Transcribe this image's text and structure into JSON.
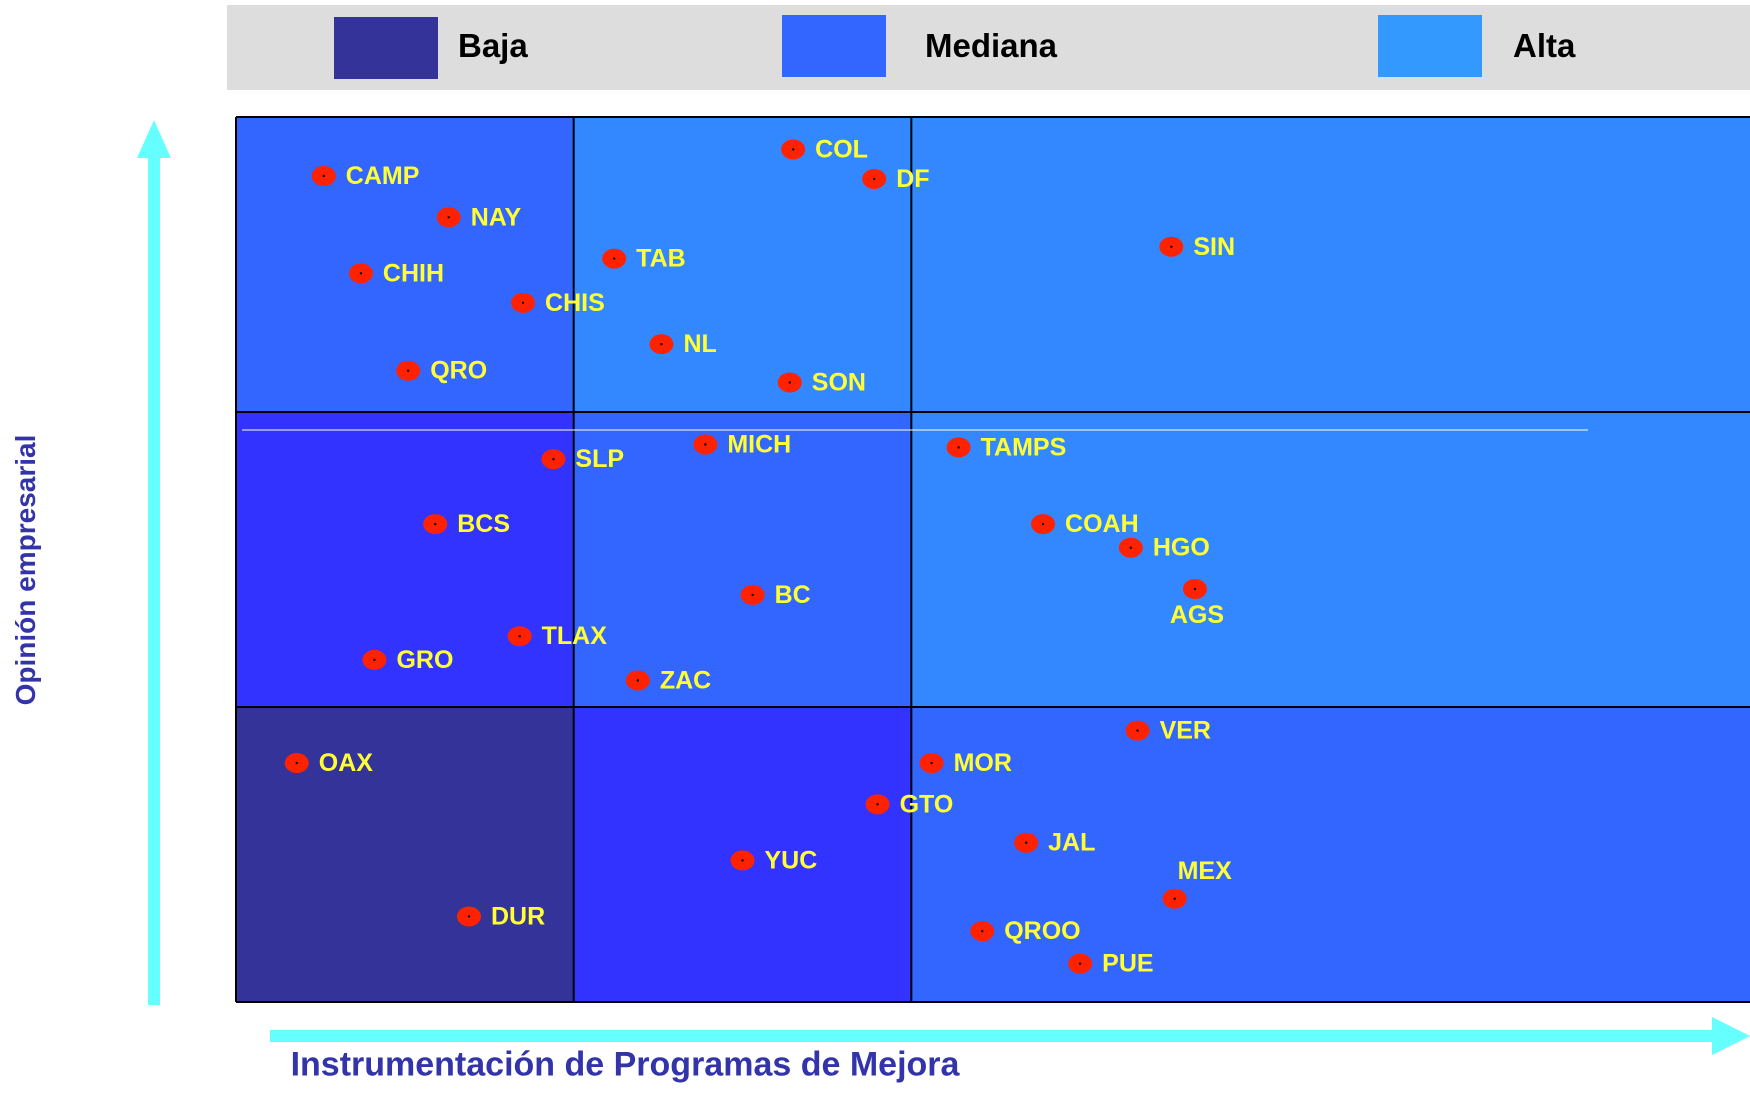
{
  "legend": [
    {
      "label": "Baja",
      "color": "#333399"
    },
    {
      "label": "Mediana",
      "color": "#3366ff"
    },
    {
      "label": "Alta",
      "color": "#3399ff"
    }
  ],
  "chart_data": {
    "type": "scatter",
    "xlabel": "Instrumentación de Programas de Mejora",
    "ylabel": "Opinión empresarial",
    "xlim": [
      0,
      3
    ],
    "ylim": [
      0,
      3
    ],
    "grid": "3x3 matrix",
    "marker_color": "#ff2200",
    "label_color": "#ffff33",
    "cells": [
      {
        "col": 0,
        "row": 0,
        "level": "Baja",
        "color": "#333399"
      },
      {
        "col": 1,
        "row": 0,
        "level": "Mediana",
        "color": "#3333ff"
      },
      {
        "col": 2,
        "row": 0,
        "level": "Mediana",
        "color": "#3366ff"
      },
      {
        "col": 0,
        "row": 1,
        "level": "Mediana",
        "color": "#3333ff"
      },
      {
        "col": 1,
        "row": 1,
        "level": "Mediana",
        "color": "#3366ff"
      },
      {
        "col": 2,
        "row": 1,
        "level": "Alta",
        "color": "#3388ff"
      },
      {
        "col": 0,
        "row": 2,
        "level": "Mediana",
        "color": "#3366ff"
      },
      {
        "col": 1,
        "row": 2,
        "level": "Alta",
        "color": "#3388ff"
      },
      {
        "col": 2,
        "row": 2,
        "level": "Alta",
        "color": "#3388ff"
      }
    ],
    "points": [
      {
        "label": "CAMP",
        "x": 0.26,
        "y": 2.8,
        "lpos": "right"
      },
      {
        "label": "NAY",
        "x": 0.63,
        "y": 2.66,
        "lpos": "right"
      },
      {
        "label": "CHIH",
        "x": 0.37,
        "y": 2.47,
        "lpos": "right"
      },
      {
        "label": "CHIS",
        "x": 0.85,
        "y": 2.37,
        "lpos": "right"
      },
      {
        "label": "QRO",
        "x": 0.51,
        "y": 2.14,
        "lpos": "right"
      },
      {
        "label": "COL",
        "x": 1.65,
        "y": 2.89,
        "lpos": "right"
      },
      {
        "label": "DF",
        "x": 1.89,
        "y": 2.79,
        "lpos": "right"
      },
      {
        "label": "TAB",
        "x": 1.12,
        "y": 2.52,
        "lpos": "right"
      },
      {
        "label": "NL",
        "x": 1.26,
        "y": 2.23,
        "lpos": "right"
      },
      {
        "label": "SON",
        "x": 1.64,
        "y": 2.1,
        "lpos": "right"
      },
      {
        "label": "SIN",
        "x": 2.77,
        "y": 2.56,
        "lpos": "right"
      },
      {
        "label": "SLP",
        "x": 0.94,
        "y": 1.84,
        "lpos": "right"
      },
      {
        "label": "MICH",
        "x": 1.39,
        "y": 1.89,
        "lpos": "right"
      },
      {
        "label": "TAMPS",
        "x": 2.14,
        "y": 1.88,
        "lpos": "right"
      },
      {
        "label": "BCS",
        "x": 0.59,
        "y": 1.62,
        "lpos": "right"
      },
      {
        "label": "COAH",
        "x": 2.39,
        "y": 1.62,
        "lpos": "right"
      },
      {
        "label": "HGO",
        "x": 2.65,
        "y": 1.54,
        "lpos": "right"
      },
      {
        "label": "AGS",
        "x": 2.84,
        "y": 1.4,
        "lpos": "below"
      },
      {
        "label": "BC",
        "x": 1.53,
        "y": 1.38,
        "lpos": "right"
      },
      {
        "label": "TLAX",
        "x": 0.84,
        "y": 1.24,
        "lpos": "right"
      },
      {
        "label": "GRO",
        "x": 0.41,
        "y": 1.16,
        "lpos": "right"
      },
      {
        "label": "ZAC",
        "x": 1.19,
        "y": 1.09,
        "lpos": "right"
      },
      {
        "label": "VER",
        "x": 2.67,
        "y": 0.92,
        "lpos": "right"
      },
      {
        "label": "OAX",
        "x": 0.18,
        "y": 0.81,
        "lpos": "right"
      },
      {
        "label": "MOR",
        "x": 2.06,
        "y": 0.81,
        "lpos": "right"
      },
      {
        "label": "GTO",
        "x": 1.9,
        "y": 0.67,
        "lpos": "right"
      },
      {
        "label": "JAL",
        "x": 2.34,
        "y": 0.54,
        "lpos": "right"
      },
      {
        "label": "YUC",
        "x": 1.5,
        "y": 0.48,
        "lpos": "right"
      },
      {
        "label": "MEX",
        "x": 2.78,
        "y": 0.35,
        "lpos": "above"
      },
      {
        "label": "DUR",
        "x": 0.69,
        "y": 0.29,
        "lpos": "right"
      },
      {
        "label": "QROO",
        "x": 2.21,
        "y": 0.24,
        "lpos": "right"
      },
      {
        "label": "PUE",
        "x": 2.5,
        "y": 0.13,
        "lpos": "right"
      }
    ]
  }
}
